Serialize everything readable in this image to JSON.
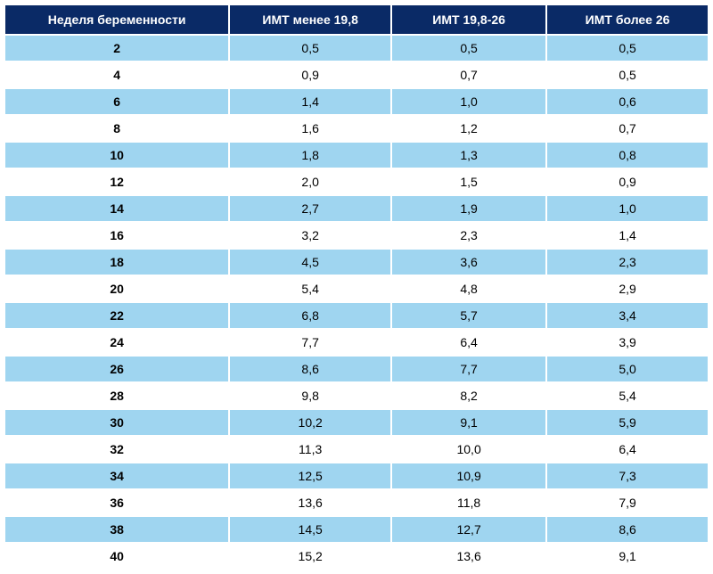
{
  "table": {
    "header_bg": "#0a2a66",
    "header_color": "#ffffff",
    "row_even_bg": "#9fd5f0",
    "row_odd_bg": "#ffffff",
    "cell_text_color": "#000000",
    "header_fontsize": 14,
    "cell_fontsize": 14,
    "columns": [
      {
        "key": "week",
        "label": "Неделя беременности",
        "width": "32%"
      },
      {
        "key": "bmi_low",
        "label": "ИМТ менее 19,8",
        "width": "23%"
      },
      {
        "key": "bmi_mid",
        "label": "ИМТ 19,8-26",
        "width": "22%"
      },
      {
        "key": "bmi_high",
        "label": "ИМТ более 26",
        "width": "23%"
      }
    ],
    "rows": [
      [
        "2",
        "0,5",
        "0,5",
        "0,5"
      ],
      [
        "4",
        "0,9",
        "0,7",
        "0,5"
      ],
      [
        "6",
        "1,4",
        "1,0",
        "0,6"
      ],
      [
        "8",
        "1,6",
        "1,2",
        "0,7"
      ],
      [
        "10",
        "1,8",
        "1,3",
        "0,8"
      ],
      [
        "12",
        "2,0",
        "1,5",
        "0,9"
      ],
      [
        "14",
        "2,7",
        "1,9",
        "1,0"
      ],
      [
        "16",
        "3,2",
        "2,3",
        "1,4"
      ],
      [
        "18",
        "4,5",
        "3,6",
        "2,3"
      ],
      [
        "20",
        "5,4",
        "4,8",
        "2,9"
      ],
      [
        "22",
        "6,8",
        "5,7",
        "3,4"
      ],
      [
        "24",
        "7,7",
        "6,4",
        "3,9"
      ],
      [
        "26",
        "8,6",
        "7,7",
        "5,0"
      ],
      [
        "28",
        "9,8",
        "8,2",
        "5,4"
      ],
      [
        "30",
        "10,2",
        "9,1",
        "5,9"
      ],
      [
        "32",
        "11,3",
        "10,0",
        "6,4"
      ],
      [
        "34",
        "12,5",
        "10,9",
        "7,3"
      ],
      [
        "36",
        "13,6",
        "11,8",
        "7,9"
      ],
      [
        "38",
        "14,5",
        "12,7",
        "8,6"
      ],
      [
        "40",
        "15,2",
        "13,6",
        "9,1"
      ]
    ]
  }
}
